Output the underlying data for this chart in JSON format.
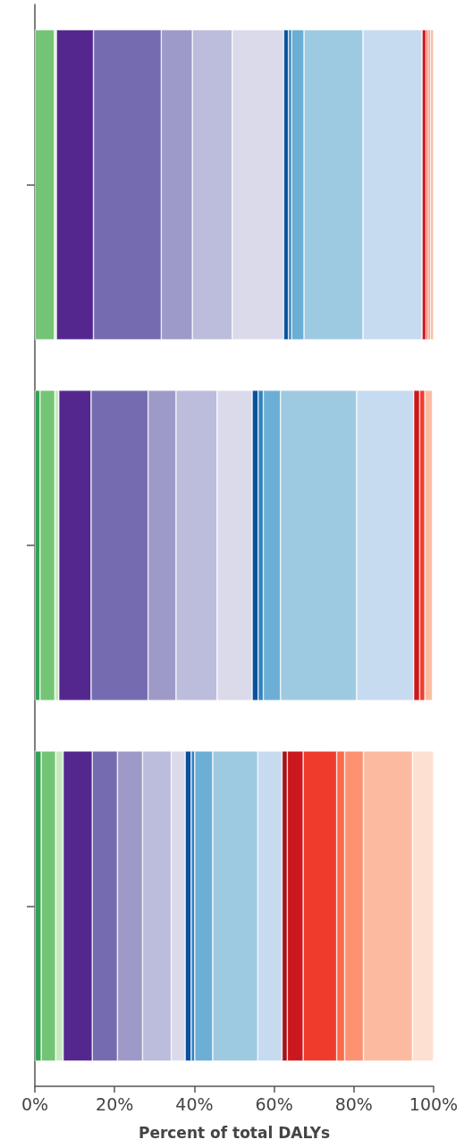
{
  "chart_data": {
    "type": "bar",
    "orientation": "horizontal",
    "stacked": true,
    "categories": [
      null,
      null,
      null
    ],
    "xlabel": "Percent of total DALYs",
    "xlim": [
      0,
      100
    ],
    "xticks": [
      {
        "value": 0,
        "label": "0%"
      },
      {
        "value": 20,
        "label": "20%"
      },
      {
        "value": 40,
        "label": "40%"
      },
      {
        "value": 60,
        "label": "60%"
      },
      {
        "value": 80,
        "label": "80%"
      },
      {
        "value": 100,
        "label": "100%"
      }
    ],
    "tick_labels": "x",
    "grid": false,
    "series": [
      {
        "color": "#31a354",
        "values": [
          null,
          1.3,
          1.6
        ]
      },
      {
        "color": "#74c476",
        "values": [
          4.9,
          3.7,
          3.6
        ]
      },
      {
        "color": "#c7e9c0",
        "values": [
          0.5,
          1.0,
          1.9
        ]
      },
      {
        "color": "#54278f",
        "values": [
          9.3,
          8.1,
          7.3
        ]
      },
      {
        "color": "#756bb1",
        "values": [
          17.0,
          14.3,
          6.3
        ]
      },
      {
        "color": "#9e9ac8",
        "values": [
          7.8,
          7.0,
          6.3
        ]
      },
      {
        "color": "#bcbddc",
        "values": [
          10.0,
          10.3,
          7.2
        ]
      },
      {
        "color": "#dadaeb",
        "values": [
          12.9,
          8.8,
          3.5
        ]
      },
      {
        "color": "#08519c",
        "values": [
          1.2,
          1.5,
          1.5
        ]
      },
      {
        "color": "#3182bd",
        "values": [
          0.8,
          1.3,
          0.9
        ]
      },
      {
        "color": "#6baed6",
        "values": [
          3.1,
          4.3,
          4.5
        ]
      },
      {
        "color": "#9ecae1",
        "values": [
          14.8,
          19.1,
          11.3
        ]
      },
      {
        "color": "#c6dbef",
        "values": [
          14.8,
          14.3,
          6.1
        ]
      },
      {
        "color": "#a50f15",
        "values": [
          null,
          null,
          1.3
        ]
      },
      {
        "color": "#cb181d",
        "values": [
          1.0,
          1.5,
          4.0
        ]
      },
      {
        "color": "#ef3b2c",
        "values": [
          0.5,
          1.3,
          8.4
        ]
      },
      {
        "color": "#fb6a4a",
        "values": [
          null,
          null,
          2.0
        ]
      },
      {
        "color": "#fc9272",
        "values": [
          0.6,
          null,
          4.7
        ]
      },
      {
        "color": "#fcbba1",
        "values": [
          0.8,
          1.9,
          12.3
        ]
      },
      {
        "color": "#fee0d2",
        "values": [
          null,
          null,
          5.3
        ]
      }
    ]
  }
}
